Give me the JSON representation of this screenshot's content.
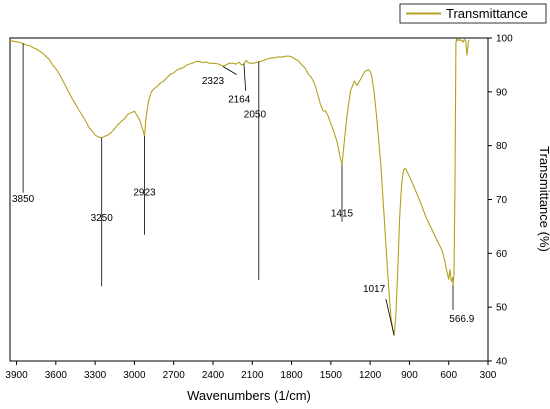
{
  "chart_data": {
    "type": "line",
    "xlabel": "Wavenumbers (1/cm)",
    "ylabel": "Transmittance (%)",
    "xlim": [
      3950,
      300
    ],
    "ylim": [
      40,
      100
    ],
    "x_reversed": true,
    "y_axis_side": "right",
    "grid": false,
    "legend_position": "top-right",
    "x_ticks": [
      3900,
      3600,
      3300,
      3000,
      2700,
      2400,
      2100,
      1800,
      1500,
      1200,
      900,
      600,
      300
    ],
    "x_tick_labels": [
      "3900",
      "3600",
      "3300",
      "3000",
      "2700",
      "2400",
      "2100",
      "1800",
      "1500",
      "1200",
      "900",
      "600",
      "300"
    ],
    "y_ticks": [
      40,
      50,
      60,
      70,
      80,
      90,
      100
    ],
    "y_tick_labels": [
      "40",
      "50",
      "60",
      "70",
      "80",
      "90",
      "100"
    ],
    "series": [
      {
        "name": "Transmittance",
        "color": "#b5a01f",
        "x": [
          3950,
          3900,
          3850,
          3800,
          3750,
          3700,
          3650,
          3600,
          3550,
          3500,
          3450,
          3400,
          3350,
          3300,
          3250,
          3200,
          3150,
          3100,
          3050,
          3000,
          2960,
          2940,
          2923,
          2910,
          2890,
          2870,
          2850,
          2800,
          2750,
          2700,
          2650,
          2600,
          2550,
          2500,
          2450,
          2400,
          2350,
          2323,
          2300,
          2250,
          2200,
          2164,
          2130,
          2100,
          2050,
          2000,
          1950,
          1900,
          1850,
          1800,
          1750,
          1700,
          1650,
          1600,
          1560,
          1520,
          1480,
          1450,
          1430,
          1415,
          1400,
          1380,
          1350,
          1320,
          1300,
          1270,
          1240,
          1210,
          1190,
          1170,
          1150,
          1120,
          1090,
          1060,
          1040,
          1025,
          1017,
          1005,
          990,
          975,
          960,
          945,
          930,
          910,
          890,
          860,
          830,
          800,
          770,
          740,
          710,
          680,
          650,
          630,
          615,
          600,
          590,
          580,
          570,
          566.9,
          560,
          552,
          545,
          540,
          530,
          520,
          510,
          500,
          490,
          480,
          470,
          460,
          450,
          440
        ],
        "y": [
          99.5,
          99.3,
          99,
          98.6,
          98,
          97.2,
          96,
          94.3,
          92.2,
          89.9,
          87.7,
          85.7,
          83.5,
          82,
          81.5,
          82,
          83.2,
          84.5,
          85.8,
          86.4,
          84.8,
          83.3,
          81.8,
          85.5,
          88.5,
          90,
          90.6,
          91.7,
          92.7,
          93.5,
          94.3,
          95,
          95.4,
          95.6,
          95.5,
          95.3,
          95.1,
          94.7,
          95,
          95.3,
          95.5,
          95.2,
          95.4,
          95.3,
          95.6,
          96,
          96.3,
          96.5,
          96.6,
          96.5,
          95.8,
          94.5,
          92.7,
          89.5,
          86.5,
          85.5,
          82.8,
          80.5,
          77.9,
          76.5,
          80,
          85,
          90.2,
          92,
          91.2,
          92.5,
          93.8,
          94.1,
          93.3,
          90,
          85.2,
          77,
          65.8,
          54,
          47.8,
          45.5,
          44.8,
          48,
          56,
          66.5,
          72.8,
          75.5,
          75.8,
          74.8,
          73.8,
          72,
          70.3,
          68.5,
          66.5,
          65,
          63.5,
          62,
          60.5,
          58.5,
          56.8,
          55.2,
          57,
          54.8,
          55.5,
          54,
          56.2,
          73,
          99,
          99.8,
          99.5,
          99.8,
          99.5,
          99.6,
          99.2,
          99.7,
          99.6,
          96.8,
          99.4,
          99.5
        ]
      }
    ],
    "annotations": [
      {
        "label": "3850",
        "x": 3850,
        "y": 99
      },
      {
        "label": "3250",
        "x": 3250,
        "y": 81.5
      },
      {
        "label": "2923",
        "x": 2923,
        "y": 81.8
      },
      {
        "label": "2323",
        "x": 2323,
        "y": 94.7
      },
      {
        "label": "2164",
        "x": 2164,
        "y": 95.2
      },
      {
        "label": "2050",
        "x": 2050,
        "y": 95.6
      },
      {
        "label": "1415",
        "x": 1415,
        "y": 76.5
      },
      {
        "label": "1017",
        "x": 1017,
        "y": 44.8
      },
      {
        "label": "566.9",
        "x": 566.9,
        "y": 54
      }
    ]
  }
}
